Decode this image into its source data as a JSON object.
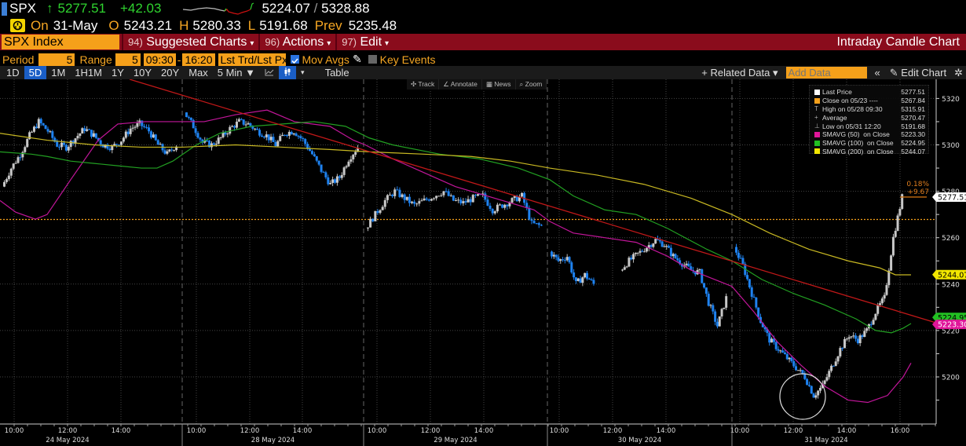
{
  "quote": {
    "ticker": "SPX",
    "arrow": "↑",
    "last": "5277.51",
    "change": "+42.03",
    "range_low": "5224.07",
    "range_sep": "/",
    "range_high": "5328.88",
    "on_label": "On",
    "date": "31-May",
    "open_label": "O",
    "open": "5243.21",
    "high_label": "H",
    "high": "5280.33",
    "low_label": "L",
    "low": "5191.68",
    "prev_label": "Prev",
    "prev": "5235.48"
  },
  "menubar": {
    "security": "SPX Index",
    "items": [
      {
        "num": "94)",
        "label": "Suggested Charts"
      },
      {
        "num": "96)",
        "label": "Actions"
      },
      {
        "num": "97)",
        "label": "Edit"
      }
    ],
    "title": "Intraday Candle Chart"
  },
  "settings": {
    "period_label": "Period",
    "period_value": "5",
    "range_label": "Range",
    "range_value": "5",
    "time_from": "09:30",
    "time_dash": "-",
    "time_to": "16:20",
    "price_type": "Lst Trd/Lst Px",
    "mov_avgs_label": "Mov Avgs",
    "key_events_label": "Key Events"
  },
  "toolbar": {
    "ranges": [
      "1D",
      "5D",
      "1M",
      "1H1M",
      "1Y",
      "10Y",
      "20Y",
      "Max"
    ],
    "active_range": "5D",
    "interval": "5 Min ▼",
    "table_label": "Table",
    "related_data": "+ Related Data ▾",
    "add_data_placeholder": "Add Data",
    "collapse": "«",
    "edit_chart": "Edit Chart"
  },
  "chart_tools": [
    "Track",
    "Annotate",
    "News",
    "Zoom"
  ],
  "legend": [
    {
      "swatch": "#ffffff",
      "label": "Last Price",
      "value": "5277.51"
    },
    {
      "swatch": "#f5a01a",
      "label": "Close on 05/23 ----",
      "value": "5267.84"
    },
    {
      "swatch": "none",
      "glyph": "T",
      "label": "High on 05/28 09:30",
      "value": "5315.91"
    },
    {
      "swatch": "none",
      "glyph": "+",
      "label": "Average",
      "value": "5270.47"
    },
    {
      "swatch": "none",
      "glyph": "⊥",
      "label": "Low on 05/31 12:20",
      "value": "5191.68"
    },
    {
      "swatch": "#e0169a",
      "label": "SMAVG (50)  on Close",
      "value": "5223.30"
    },
    {
      "swatch": "#22c022",
      "label": "SMAVG (100)  on Close",
      "value": "5224.95"
    },
    {
      "swatch": "#f2e600",
      "label": "SMAVG (200)  on Close",
      "value": "5244.07"
    }
  ],
  "annotations": {
    "pct_change": "0.18%",
    "abs_change": "+9.67",
    "last_price_tag": "5277.51",
    "sma200_tag": "5244.07",
    "sma50_tag": "5223.30",
    "sma100_tag": "5224.95"
  },
  "chart_data": {
    "type": "candlestick",
    "title": "SPX Index Intraday Candle Chart (5 Min, 5D)",
    "xlabel": "",
    "ylabel": "",
    "ylim": [
      5185,
      5330
    ],
    "yticks": [
      5200,
      5220,
      5240,
      5260,
      5280,
      5300,
      5320
    ],
    "grid": true,
    "legend_position": "top-right",
    "days": [
      {
        "label": "24 May 2024",
        "ticks": [
          "10:00",
          "12:00",
          "14:00"
        ]
      },
      {
        "label": "28 May 2024",
        "ticks": [
          "10:00",
          "12:00",
          "14:00"
        ]
      },
      {
        "label": "29 May 2024",
        "ticks": [
          "10:00",
          "12:00",
          "14:00"
        ]
      },
      {
        "label": "30 May 2024",
        "ticks": [
          "10:00",
          "12:00",
          "14:00"
        ]
      },
      {
        "label": "31 May 2024",
        "ticks": [
          "10:00",
          "12:00",
          "14:00",
          "16:00"
        ]
      }
    ],
    "reference_lines": {
      "close_on_05_23": 5267.84
    },
    "price_path": {
      "24 May 2024": [
        5282,
        5290,
        5296,
        5304,
        5310,
        5306,
        5300,
        5299,
        5303,
        5307,
        5304,
        5300,
        5299,
        5302,
        5307,
        5309,
        5306,
        5300,
        5296,
        5300
      ],
      "28 May 2024": [
        5314,
        5308,
        5301,
        5300,
        5303,
        5307,
        5310,
        5309,
        5306,
        5304,
        5300,
        5305,
        5306,
        5302,
        5296,
        5289,
        5283,
        5286,
        5294,
        5299
      ],
      "29 May 2024": [
        5264,
        5270,
        5276,
        5280,
        5277,
        5274,
        5276,
        5278,
        5280,
        5276,
        5275,
        5277,
        5278,
        5272,
        5274,
        5276,
        5278,
        5266,
        5265
      ],
      "30 May 2024": [
        5254,
        5250,
        5252,
        5240,
        5244,
        5240,
        null,
        null,
        5246,
        5250,
        5253,
        5256,
        5259,
        5257,
        5252,
        5249,
        5246,
        5245,
        5232,
        5222,
        5234
      ],
      "31 May 2024": [
        5256,
        5248,
        5236,
        5224,
        5216,
        5212,
        5208,
        5204,
        5200,
        5192,
        5196,
        5204,
        5212,
        5218,
        5216,
        5220,
        5228,
        5234,
        5260,
        5277.51
      ]
    },
    "series": [
      {
        "name": "SMAVG (50) on Close",
        "color": "#e0169a",
        "last": 5223.3
      },
      {
        "name": "SMAVG (100) on Close",
        "color": "#22c022",
        "last": 5224.95
      },
      {
        "name": "SMAVG (200) on Close",
        "color": "#f2e600",
        "last": 5244.07
      },
      {
        "name": "Trendline",
        "color": "#c01818"
      }
    ],
    "stats": {
      "last_price": 5277.51,
      "close_on_05_23": 5267.84,
      "high_05_28_0930": 5315.91,
      "average": 5270.47,
      "low_05_31_1220": 5191.68
    }
  }
}
